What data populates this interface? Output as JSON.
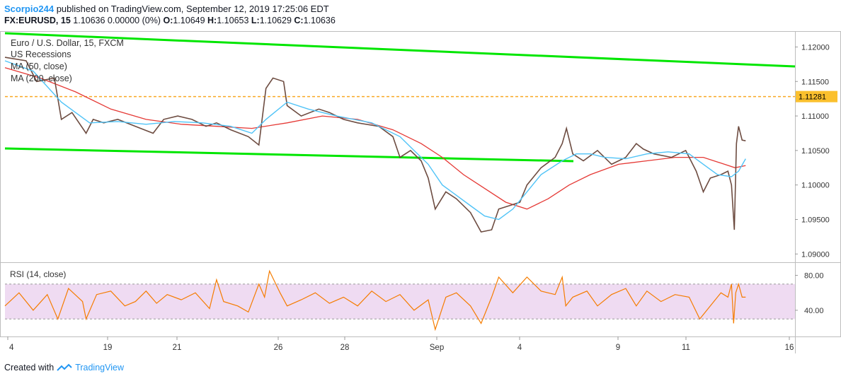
{
  "header": {
    "publisher": "Scorpio244",
    "published_text": " published on TradingView.com, September 12, 2019 17:25:06 EDT",
    "symbol": "FX:EURUSD, 15",
    "quote": "1.10636 0.00000 (0%)",
    "o_label": "O:",
    "o_value": "1.10649",
    "h_label": "H:",
    "h_value": "1.10653",
    "l_label": "L:",
    "l_value": "1.10629",
    "c_label": "C:",
    "c_value": "1.10636"
  },
  "legend": {
    "title": "Euro / U.S. Dollar, 15, FXCM",
    "recessions": "US Recessions",
    "ma50": "MA (50, close)",
    "ma200": "MA (200, close)",
    "rsi": "RSI (14, close)"
  },
  "footer": {
    "created_with": "Created with",
    "brand": "TradingView"
  },
  "colors": {
    "price": "#6d4c41",
    "ma50": "#4fc3f7",
    "ma200": "#e53935",
    "trendline": "#00e600",
    "resistance": "#f9a825",
    "rsi": "#f57c00",
    "rsi_band": "#e1bee7"
  },
  "chart_data": [
    {
      "type": "line",
      "title": "Euro / U.S. Dollar, 15, FXCM",
      "x_tick_labels": [
        "4",
        "19",
        "21",
        "26",
        "28",
        "Sep",
        "4",
        "9",
        "11",
        "16"
      ],
      "y_tick_labels": [
        "1.12000",
        "1.11500",
        "1.11000",
        "1.10500",
        "1.10000",
        "1.09500",
        "1.09000"
      ],
      "ylim": [
        1.0888,
        1.1223
      ],
      "price_label": "1.11281",
      "series": [
        {
          "name": "Euro / U.S. Dollar",
          "x": [
            0,
            30,
            45,
            70,
            80,
            95,
            115,
            125,
            140,
            160,
            185,
            210,
            225,
            245,
            265,
            285,
            300,
            320,
            345,
            360,
            370,
            380,
            395,
            400,
            420,
            445,
            460,
            480,
            500,
            530,
            550,
            560,
            575,
            590,
            600,
            610,
            625,
            640,
            660,
            675,
            690,
            700,
            715,
            730,
            740,
            760,
            780,
            790,
            796,
            805,
            820,
            840,
            860,
            880,
            895,
            905,
            920,
            945,
            965,
            980,
            990,
            1000,
            1015,
            1025,
            1030,
            1034,
            1037,
            1040,
            1045,
            1050
          ],
          "y": [
            1.1185,
            1.118,
            1.115,
            1.1155,
            1.1095,
            1.1105,
            1.1075,
            1.1095,
            1.109,
            1.1095,
            1.1085,
            1.1075,
            1.1095,
            1.11,
            1.1095,
            1.1085,
            1.109,
            1.108,
            1.107,
            1.1058,
            1.114,
            1.1155,
            1.115,
            1.1115,
            1.11,
            1.111,
            1.1105,
            1.1095,
            1.109,
            1.1085,
            1.107,
            1.104,
            1.105,
            1.1035,
            1.101,
            1.0965,
            1.099,
            1.098,
            1.096,
            1.0932,
            1.0935,
            1.0965,
            1.097,
            1.0975,
            1.1,
            1.1025,
            1.104,
            1.106,
            1.1082,
            1.1045,
            1.1035,
            1.105,
            1.103,
            1.104,
            1.106,
            1.1052,
            1.1045,
            1.104,
            1.105,
            1.102,
            1.099,
            1.101,
            1.1015,
            1.102,
            1.1,
            1.0935,
            1.106,
            1.1085,
            1.1065,
            1.1064
          ]
        },
        {
          "name": "MA (50, close)",
          "x": [
            0,
            40,
            80,
            120,
            160,
            200,
            240,
            280,
            320,
            350,
            370,
            400,
            430,
            470,
            520,
            560,
            580,
            600,
            620,
            640,
            660,
            680,
            700,
            720,
            740,
            760,
            790,
            810,
            830,
            850,
            880,
            910,
            940,
            970,
            990,
            1010,
            1030,
            1040,
            1050
          ],
          "y": [
            1.118,
            1.1165,
            1.112,
            1.109,
            1.1092,
            1.1088,
            1.1092,
            1.109,
            1.1085,
            1.1075,
            1.1095,
            1.112,
            1.111,
            1.11,
            1.109,
            1.107,
            1.105,
            1.103,
            1.1,
            1.0985,
            1.097,
            1.0955,
            1.095,
            1.0965,
            1.099,
            1.1015,
            1.1035,
            1.1045,
            1.1045,
            1.104,
            1.1038,
            1.1045,
            1.1048,
            1.1045,
            1.103,
            1.1015,
            1.1012,
            1.102,
            1.1038
          ]
        },
        {
          "name": "MA (200, close)",
          "x": [
            0,
            50,
            100,
            150,
            200,
            250,
            300,
            350,
            400,
            450,
            500,
            550,
            590,
            620,
            650,
            680,
            710,
            740,
            770,
            800,
            830,
            870,
            910,
            950,
            990,
            1020,
            1035,
            1050
          ],
          "y": [
            1.117,
            1.1155,
            1.1135,
            1.111,
            1.1095,
            1.1088,
            1.1085,
            1.1082,
            1.109,
            1.11,
            1.1095,
            1.108,
            1.106,
            1.104,
            1.1015,
            1.0995,
            1.0975,
            1.0965,
            1.098,
            1.1,
            1.1015,
            1.103,
            1.1035,
            1.104,
            1.104,
            1.103,
            1.1025,
            1.1028
          ]
        }
      ]
    },
    {
      "type": "line",
      "title": "RSI (14, close)",
      "y_tick_labels": [
        "80.00",
        "40.00"
      ],
      "ylim": [
        10,
        95
      ],
      "band": [
        30,
        70
      ],
      "series": [
        {
          "name": "RSI (14, close)",
          "x": [
            0,
            20,
            40,
            60,
            75,
            90,
            110,
            115,
            130,
            150,
            170,
            185,
            200,
            215,
            230,
            250,
            270,
            290,
            300,
            310,
            330,
            345,
            360,
            368,
            375,
            390,
            400,
            420,
            440,
            460,
            480,
            500,
            520,
            540,
            560,
            580,
            600,
            610,
            625,
            640,
            660,
            675,
            690,
            700,
            720,
            740,
            760,
            780,
            790,
            795,
            805,
            825,
            840,
            860,
            880,
            895,
            910,
            930,
            950,
            970,
            985,
            1000,
            1015,
            1025,
            1030,
            1033,
            1036,
            1040,
            1045,
            1050
          ],
          "y": [
            45,
            60,
            40,
            58,
            30,
            65,
            50,
            30,
            58,
            62,
            45,
            50,
            62,
            48,
            58,
            52,
            60,
            42,
            75,
            50,
            45,
            38,
            70,
            55,
            85,
            60,
            45,
            52,
            60,
            48,
            55,
            45,
            62,
            50,
            58,
            40,
            52,
            18,
            55,
            60,
            45,
            25,
            55,
            78,
            60,
            78,
            62,
            58,
            78,
            45,
            55,
            62,
            45,
            58,
            65,
            45,
            62,
            50,
            58,
            55,
            30,
            45,
            60,
            55,
            70,
            25,
            60,
            70,
            55,
            55
          ]
        }
      ]
    }
  ]
}
